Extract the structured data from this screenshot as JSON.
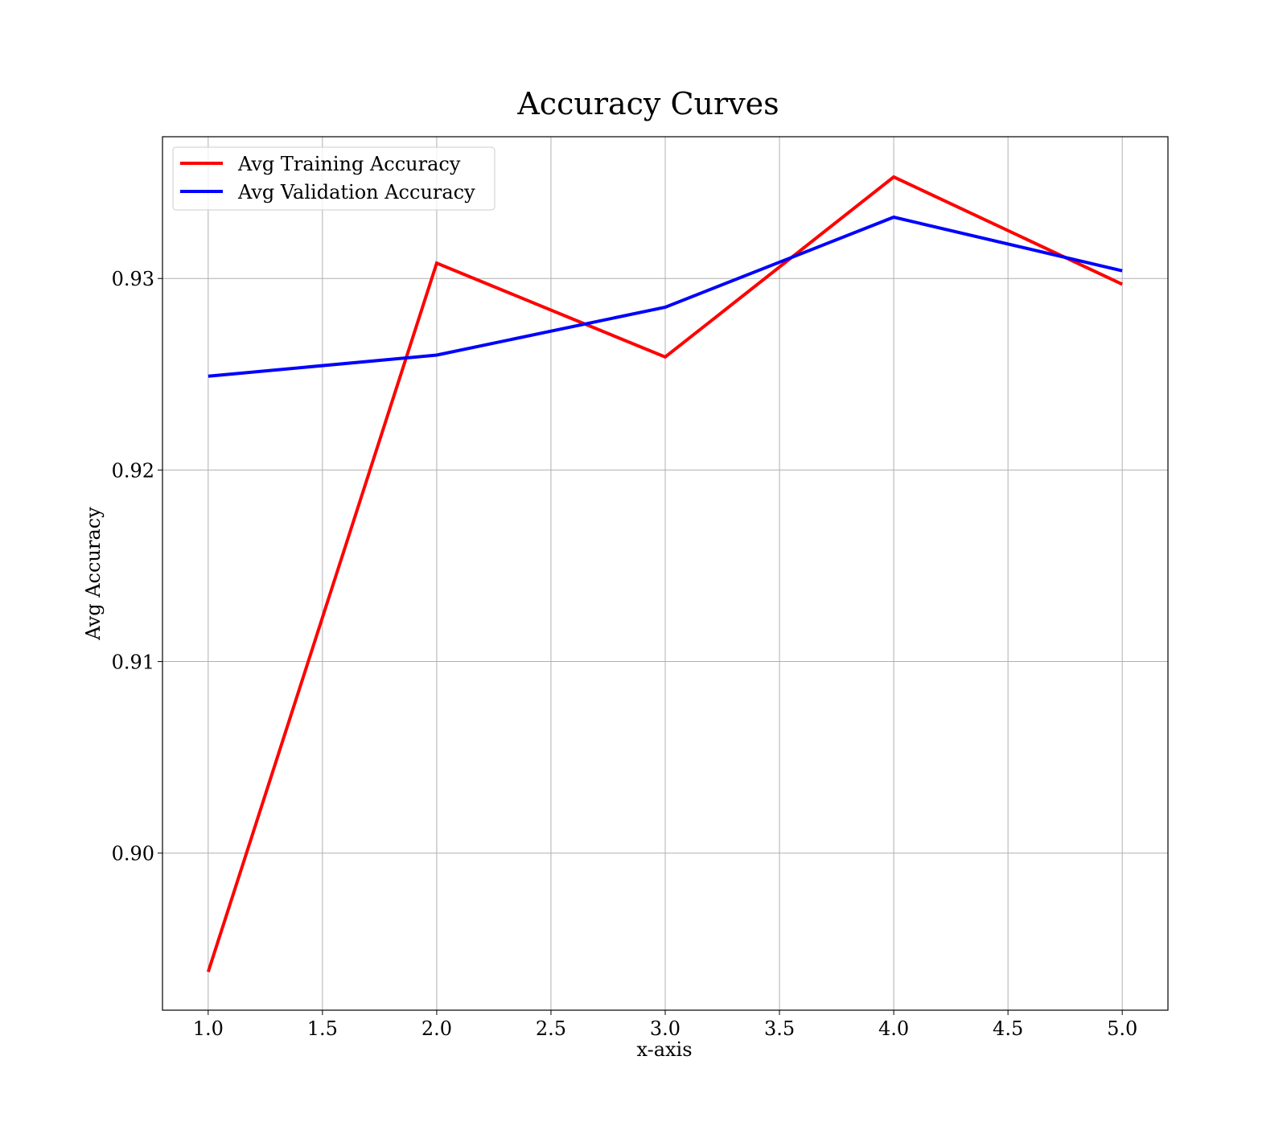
{
  "chart_data": {
    "type": "line",
    "title": "Accuracy Curves",
    "xlabel": "x-axis",
    "ylabel": "Avg Accuracy",
    "x": [
      1,
      2,
      3,
      4,
      5
    ],
    "xlim": [
      0.8,
      5.2
    ],
    "ylim": [
      0.8918,
      0.9374
    ],
    "x_ticks": [
      1.0,
      1.5,
      2.0,
      2.5,
      3.0,
      3.5,
      4.0,
      4.5,
      5.0
    ],
    "x_tick_labels": [
      "1.0",
      "1.5",
      "2.0",
      "2.5",
      "3.0",
      "3.5",
      "4.0",
      "4.5",
      "5.0"
    ],
    "y_ticks": [
      0.9,
      0.91,
      0.92,
      0.93
    ],
    "y_tick_labels": [
      "0.90",
      "0.91",
      "0.92",
      "0.93"
    ],
    "grid": true,
    "legend_position": "top-left",
    "series": [
      {
        "name": "Avg Training Accuracy",
        "color": "#ff0000",
        "values": [
          0.8938,
          0.9308,
          0.9259,
          0.9353,
          0.9297
        ]
      },
      {
        "name": "Avg Validation Accuracy",
        "color": "#0000ff",
        "values": [
          0.9249,
          0.926,
          0.9285,
          0.9332,
          0.9304
        ]
      }
    ]
  }
}
